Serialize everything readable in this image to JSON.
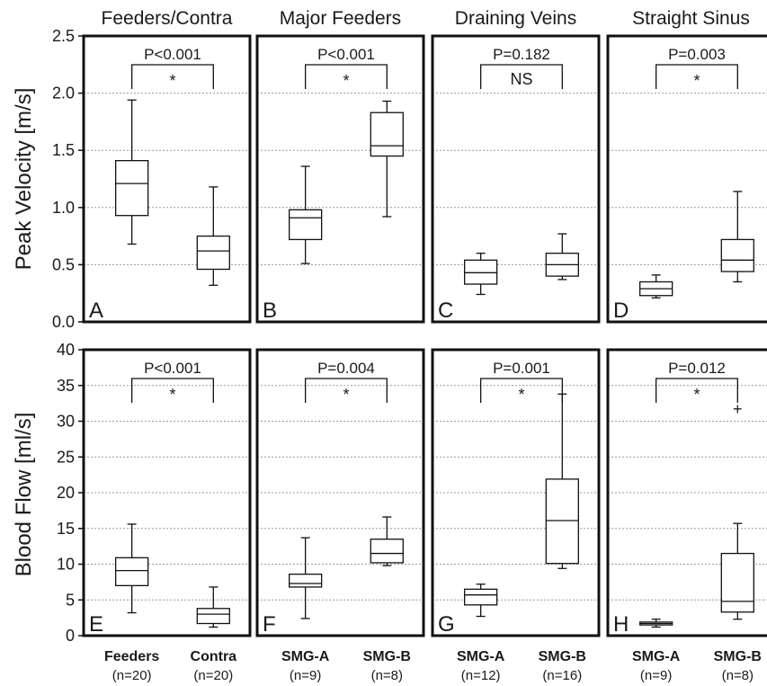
{
  "chart_data": {
    "type": "box",
    "column_titles": [
      "Feeders/Contra",
      "Major Feeders",
      "Draining Veins",
      "Straight Sinus"
    ],
    "rows": [
      {
        "ylabel": "Peak Velocity [m/s]",
        "ylim": [
          0,
          2.5
        ],
        "ticks": [
          "0.0",
          "0.5",
          "1.0",
          "1.5",
          "2.0",
          "2.5"
        ],
        "tick_values": [
          0,
          0.5,
          1.0,
          1.5,
          2.0,
          2.5
        ],
        "panels": [
          {
            "letter": "A",
            "p": "P<0.001",
            "sig": "*",
            "boxes": [
              {
                "min": 0.68,
                "q1": 0.93,
                "median": 1.21,
                "q3": 1.41,
                "max": 1.94,
                "outliers": []
              },
              {
                "min": 0.32,
                "q1": 0.46,
                "median": 0.62,
                "q3": 0.75,
                "max": 1.18,
                "outliers": []
              }
            ]
          },
          {
            "letter": "B",
            "p": "P<0.001",
            "sig": "*",
            "boxes": [
              {
                "min": 0.51,
                "q1": 0.72,
                "median": 0.91,
                "q3": 0.98,
                "max": 1.36,
                "outliers": []
              },
              {
                "min": 0.92,
                "q1": 1.45,
                "median": 1.54,
                "q3": 1.83,
                "max": 1.93,
                "outliers": []
              }
            ]
          },
          {
            "letter": "C",
            "p": "P=0.182",
            "sig": "NS",
            "boxes": [
              {
                "min": 0.24,
                "q1": 0.33,
                "median": 0.43,
                "q3": 0.54,
                "max": 0.6,
                "outliers": []
              },
              {
                "min": 0.37,
                "q1": 0.4,
                "median": 0.5,
                "q3": 0.6,
                "max": 0.77,
                "outliers": []
              }
            ]
          },
          {
            "letter": "D",
            "p": "P=0.003",
            "sig": "*",
            "boxes": [
              {
                "min": 0.21,
                "q1": 0.23,
                "median": 0.29,
                "q3": 0.35,
                "max": 0.41,
                "outliers": []
              },
              {
                "min": 0.35,
                "q1": 0.44,
                "median": 0.54,
                "q3": 0.72,
                "max": 1.14,
                "outliers": []
              }
            ]
          }
        ]
      },
      {
        "ylabel": "Blood Flow [ml/s]",
        "ylim": [
          0,
          40
        ],
        "ticks": [
          "0",
          "5",
          "10",
          "15",
          "20",
          "25",
          "30",
          "35",
          "40"
        ],
        "tick_values": [
          0,
          5,
          10,
          15,
          20,
          25,
          30,
          35,
          40
        ],
        "panels": [
          {
            "letter": "E",
            "p": "P<0.001",
            "sig": "*",
            "boxes": [
              {
                "min": 3.2,
                "q1": 7.0,
                "median": 9.1,
                "q3": 10.9,
                "max": 15.6,
                "outliers": []
              },
              {
                "min": 1.2,
                "q1": 1.7,
                "median": 3.0,
                "q3": 3.8,
                "max": 6.8,
                "outliers": []
              }
            ]
          },
          {
            "letter": "F",
            "p": "P=0.004",
            "sig": "*",
            "boxes": [
              {
                "min": 2.4,
                "q1": 6.8,
                "median": 7.3,
                "q3": 8.6,
                "max": 13.7,
                "outliers": []
              },
              {
                "min": 9.8,
                "q1": 10.2,
                "median": 11.5,
                "q3": 13.5,
                "max": 16.6,
                "outliers": []
              }
            ]
          },
          {
            "letter": "G",
            "p": "P=0.001",
            "sig": "*",
            "boxes": [
              {
                "min": 2.7,
                "q1": 4.3,
                "median": 5.7,
                "q3": 6.5,
                "max": 7.2,
                "outliers": []
              },
              {
                "min": 9.4,
                "q1": 10.1,
                "median": 16.1,
                "q3": 21.9,
                "max": 33.8,
                "outliers": []
              }
            ]
          },
          {
            "letter": "H",
            "p": "P=0.012",
            "sig": "*",
            "boxes": [
              {
                "min": 1.2,
                "q1": 1.5,
                "median": 1.7,
                "q3": 1.9,
                "max": 2.3,
                "outliers": []
              },
              {
                "min": 2.3,
                "q1": 3.3,
                "median": 4.8,
                "q3": 11.5,
                "max": 15.7,
                "outliers": [
                  31.7
                ]
              }
            ]
          }
        ]
      }
    ],
    "groups": [
      [
        {
          "name": "Feeders",
          "n": "(n=20)"
        },
        {
          "name": "Contra",
          "n": "(n=20)"
        }
      ],
      [
        {
          "name": "SMG-A",
          "n": "(n=9)"
        },
        {
          "name": "SMG-B",
          "n": "(n=8)"
        }
      ],
      [
        {
          "name": "SMG-A",
          "n": "(n=12)"
        },
        {
          "name": "SMG-B",
          "n": "(n=16)"
        }
      ],
      [
        {
          "name": "SMG-A",
          "n": "(n=9)"
        },
        {
          "name": "SMG-B",
          "n": "(n=8)"
        }
      ]
    ],
    "outlier_marker": "+",
    "grid": true,
    "grid_style": "dotted-horizontal"
  }
}
